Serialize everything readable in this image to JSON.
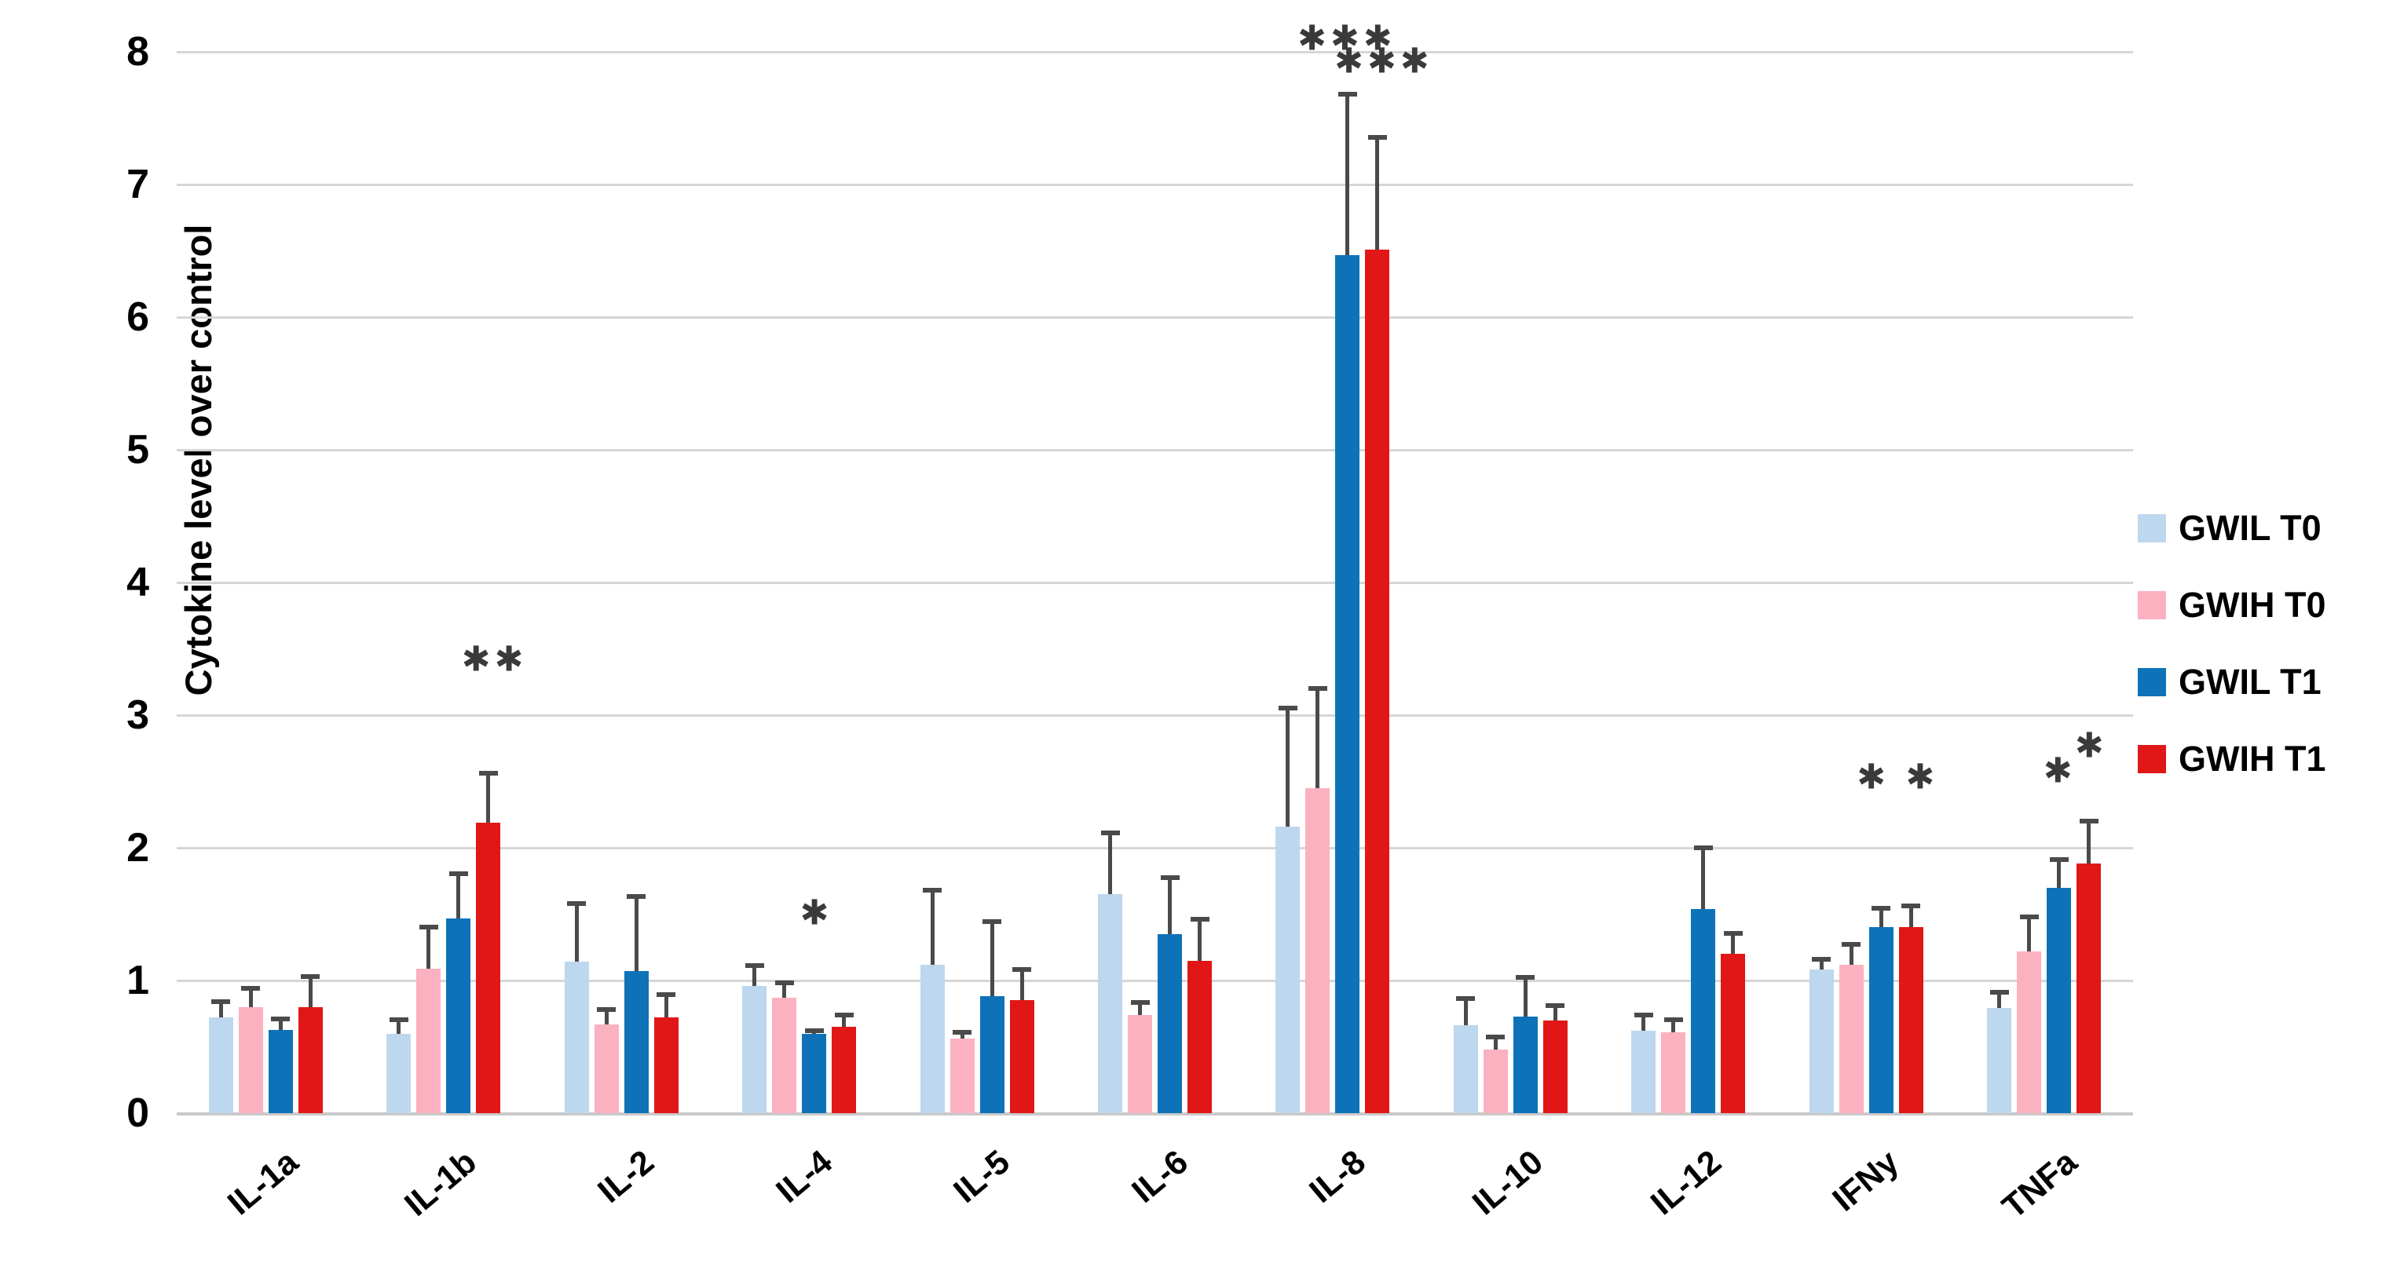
{
  "chart_data": {
    "type": "bar",
    "title": "",
    "xlabel": "",
    "ylabel": "Cytokine level over control",
    "ylim": [
      0,
      8
    ],
    "y_ticks": [
      0,
      1,
      2,
      3,
      4,
      5,
      6,
      7,
      8
    ],
    "grid": true,
    "legend_position": "right",
    "categories": [
      "IL-1a",
      "IL-1b",
      "IL-2",
      "IL-4",
      "IL-5",
      "IL-6",
      "IL-8",
      "IL-10",
      "IL-12",
      "IFNy",
      "TNFa"
    ],
    "series": [
      {
        "name": "GWIL T0",
        "color": "#BDD7EE",
        "values": [
          0.72,
          0.6,
          1.14,
          0.96,
          1.12,
          1.65,
          2.16,
          0.66,
          0.62,
          1.08,
          0.79
        ],
        "errors": [
          0.14,
          0.12,
          0.46,
          0.17,
          0.58,
          0.48,
          0.91,
          0.22,
          0.14,
          0.1,
          0.14
        ]
      },
      {
        "name": "GWIH T0",
        "color": "#FBB1C0",
        "values": [
          0.8,
          1.09,
          0.67,
          0.87,
          0.56,
          0.74,
          2.45,
          0.48,
          0.61,
          1.12,
          1.22
        ],
        "errors": [
          0.16,
          0.33,
          0.13,
          0.13,
          0.07,
          0.11,
          0.77,
          0.11,
          0.11,
          0.17,
          0.28
        ]
      },
      {
        "name": "GWIL T1",
        "color": "#0E72B8",
        "values": [
          0.63,
          1.47,
          1.07,
          0.6,
          0.88,
          1.35,
          6.47,
          0.73,
          1.54,
          1.4,
          1.7
        ],
        "errors": [
          0.1,
          0.35,
          0.58,
          0.04,
          0.58,
          0.44,
          1.23,
          0.31,
          0.48,
          0.16,
          0.23
        ]
      },
      {
        "name": "GWIH T1",
        "color": "#E11717",
        "values": [
          0.8,
          2.19,
          0.72,
          0.65,
          0.85,
          1.15,
          6.51,
          0.7,
          1.2,
          1.4,
          1.88
        ],
        "errors": [
          0.25,
          0.39,
          0.19,
          0.11,
          0.25,
          0.33,
          0.86,
          0.13,
          0.17,
          0.18,
          0.34
        ]
      }
    ],
    "annotations": [
      {
        "category": "IL-1b",
        "text": "✱✱",
        "value": 3.42,
        "dx": 65
      },
      {
        "category": "IL-4",
        "text": "✱",
        "value": 1.51,
        "dx": 22
      },
      {
        "category": "IL-8",
        "text": "✱✱✱",
        "value": 8.1,
        "dx": 18
      },
      {
        "category": "IL-8",
        "text": "✱✱✱",
        "value": 7.93,
        "dx": 65
      },
      {
        "category": "IFNy",
        "text": "✱ ✱",
        "value": 2.53,
        "dx": 40
      },
      {
        "category": "TNFa",
        "text": "✱",
        "value": 2.58,
        "dx": 20
      },
      {
        "category": "TNFa",
        "text": "✱",
        "value": 2.77,
        "dx": 60
      }
    ],
    "colors": {
      "gridline": "#D6D6D6",
      "axis_line": "#C9C9C9",
      "error_bar": "#4A4A4A",
      "annotation": "#3A3A3A",
      "tick_text": "#000000"
    }
  }
}
